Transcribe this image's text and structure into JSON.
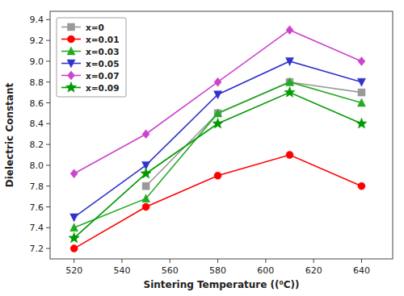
{
  "chart_data": {
    "type": "line",
    "x_label": "Sintering Temperature ((⁰C))",
    "y_label": "Dielectric Constant",
    "x": [
      520,
      550,
      580,
      610,
      640
    ],
    "series": [
      {
        "name": "x=0",
        "color": "#999999",
        "marker": "square",
        "values": [
          null,
          7.8,
          8.5,
          8.8,
          8.7
        ]
      },
      {
        "name": "x=0.01",
        "color": "#ff0000",
        "marker": "circle",
        "values": [
          7.2,
          7.6,
          7.9,
          8.1,
          7.8
        ]
      },
      {
        "name": "x=0.03",
        "color": "#22aa22",
        "marker": "triangle-up",
        "values": [
          7.4,
          7.68,
          8.5,
          8.8,
          8.6
        ]
      },
      {
        "name": "x=0.05",
        "color": "#3333cc",
        "marker": "triangle-down",
        "values": [
          7.5,
          8.0,
          8.68,
          9.0,
          8.8
        ]
      },
      {
        "name": "x=0.07",
        "color": "#cc44cc",
        "marker": "diamond",
        "values": [
          7.92,
          8.3,
          8.8,
          9.3,
          9.0
        ]
      },
      {
        "name": "x=0.09",
        "color": "#009900",
        "marker": "star",
        "values": [
          7.3,
          7.92,
          8.4,
          8.7,
          8.4
        ]
      }
    ],
    "xlim": [
      510,
      653
    ],
    "ylim": [
      7.1,
      9.48
    ],
    "xticks": [
      520,
      540,
      560,
      580,
      600,
      620,
      640
    ],
    "yticks": [
      7.2,
      7.4,
      7.6,
      7.8,
      {
        "value": 8.0,
        "label": "8.0"
      },
      8.2,
      8.4,
      8.6,
      8.8,
      {
        "value": 9.0,
        "label": "9.0"
      },
      9.2,
      9.4
    ],
    "grid": false,
    "legend": "upper-left"
  }
}
